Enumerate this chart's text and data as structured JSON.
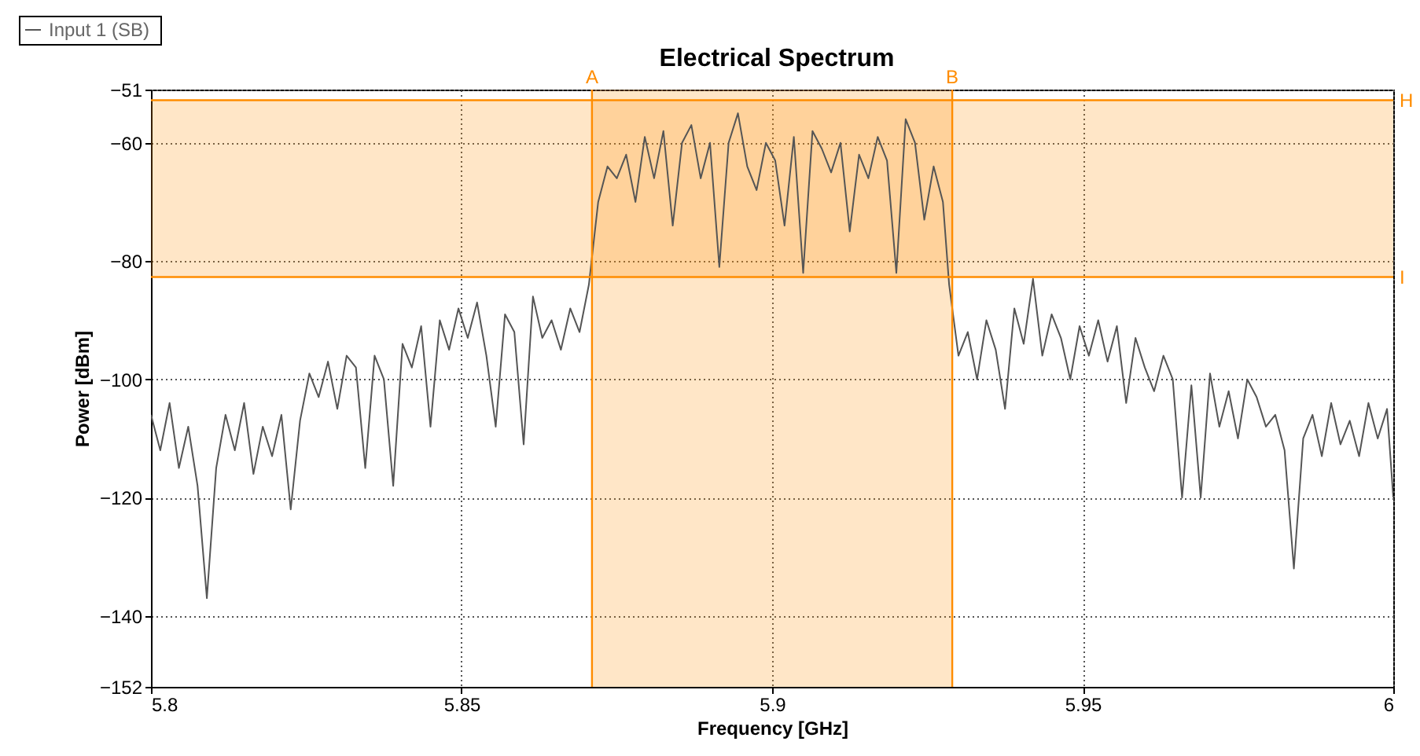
{
  "chart_data": {
    "type": "line",
    "title": "Electrical Spectrum",
    "xlabel": "Frequency [GHz]",
    "ylabel": "Power [dBm]",
    "xlim": [
      5.8,
      6
    ],
    "xticks": [
      5.8,
      5.85,
      5.9,
      5.95,
      6
    ],
    "ylim": [
      -152,
      -51
    ],
    "yticks": [
      -152,
      -140,
      -120,
      -100,
      -80,
      -60,
      -51
    ],
    "grid": true,
    "legend": "top left",
    "line_style": "solid",
    "marker": "none",
    "series": [
      {
        "name": "Input 1  (SB)",
        "color": "#555555",
        "x": [
          5.8,
          5.8015,
          5.803,
          5.8045,
          5.806,
          5.8075,
          5.809,
          5.8105,
          5.812,
          5.8135,
          5.815,
          5.8165,
          5.818,
          5.8195,
          5.821,
          5.8225,
          5.824,
          5.8255,
          5.827,
          5.8285,
          5.83,
          5.8315,
          5.833,
          5.8345,
          5.836,
          5.8375,
          5.839,
          5.8405,
          5.842,
          5.8435,
          5.845,
          5.8465,
          5.848,
          5.8495,
          5.851,
          5.8525,
          5.854,
          5.8555,
          5.857,
          5.8585,
          5.86,
          5.8615,
          5.863,
          5.8645,
          5.866,
          5.8675,
          5.869,
          5.8705,
          5.872,
          5.8735,
          5.875,
          5.8765,
          5.878,
          5.8795,
          5.881,
          5.8825,
          5.884,
          5.8855,
          5.887,
          5.8885,
          5.89,
          5.8915,
          5.893,
          5.8945,
          5.896,
          5.8975,
          5.899,
          5.9005,
          5.902,
          5.9035,
          5.905,
          5.9065,
          5.908,
          5.9095,
          5.911,
          5.9125,
          5.914,
          5.9155,
          5.917,
          5.9185,
          5.92,
          5.9215,
          5.923,
          5.9245,
          5.926,
          5.9275,
          5.9285,
          5.93,
          5.9315,
          5.933,
          5.9345,
          5.936,
          5.9375,
          5.939,
          5.9405,
          5.942,
          5.9435,
          5.945,
          5.9465,
          5.948,
          5.9495,
          5.951,
          5.9525,
          5.954,
          5.9555,
          5.957,
          5.9585,
          5.96,
          5.9615,
          5.963,
          5.9645,
          5.966,
          5.9675,
          5.969,
          5.9705,
          5.972,
          5.9735,
          5.975,
          5.9765,
          5.978,
          5.9795,
          5.981,
          5.9825,
          5.984,
          5.9855,
          5.987,
          5.9885,
          5.99,
          5.9915,
          5.993,
          5.9945,
          5.996,
          5.9975,
          5.999,
          6
        ],
        "values": [
          -106,
          -112,
          -104,
          -115,
          -108,
          -118,
          -137,
          -115,
          -106,
          -112,
          -104,
          -116,
          -108,
          -113,
          -106,
          -122,
          -107,
          -99,
          -103,
          -97,
          -105,
          -96,
          -98,
          -115,
          -96,
          -100,
          -118,
          -94,
          -98,
          -91,
          -108,
          -90,
          -95,
          -88,
          -93,
          -87,
          -96,
          -108,
          -89,
          -92,
          -111,
          -86,
          -93,
          -90,
          -95,
          -88,
          -92,
          -84,
          -70,
          -64,
          -66,
          -62,
          -70,
          -59,
          -66,
          -58,
          -74,
          -60,
          -57,
          -66,
          -60,
          -81,
          -60,
          -55,
          -64,
          -68,
          -60,
          -63,
          -74,
          -59,
          -82,
          -58,
          -61,
          -65,
          -60,
          -75,
          -62,
          -66,
          -59,
          -63,
          -82,
          -56,
          -60,
          -73,
          -64,
          -70,
          -84,
          -96,
          -92,
          -100,
          -90,
          -95,
          -105,
          -88,
          -94,
          -83,
          -96,
          -89,
          -93,
          -100,
          -91,
          -96,
          -90,
          -97,
          -91,
          -104,
          -93,
          -98,
          -102,
          -96,
          -100,
          -120,
          -101,
          -120,
          -99,
          -108,
          -102,
          -110,
          -100,
          -103,
          -108,
          -106,
          -112,
          -132,
          -110,
          -106,
          -113,
          -104,
          -111,
          -107,
          -113,
          -104,
          -110,
          -105,
          -120
        ]
      }
    ],
    "bands": [
      {
        "axis": "x",
        "from": 5.871,
        "to": 5.929,
        "color": "#ff8c00"
      },
      {
        "axis": "y",
        "from": -82.7,
        "to": -52.8,
        "color": "#ff8c00"
      }
    ],
    "ref_lines": [
      {
        "axis": "x",
        "value": 5.871,
        "label": "A",
        "color": "#ff8c00"
      },
      {
        "axis": "x",
        "value": 5.929,
        "label": "B",
        "color": "#ff8c00"
      },
      {
        "axis": "y",
        "value": -52.8,
        "label": "H",
        "color": "#ff8c00"
      },
      {
        "axis": "y",
        "value": -82.7,
        "label": "I",
        "color": "#ff8c00"
      }
    ]
  }
}
